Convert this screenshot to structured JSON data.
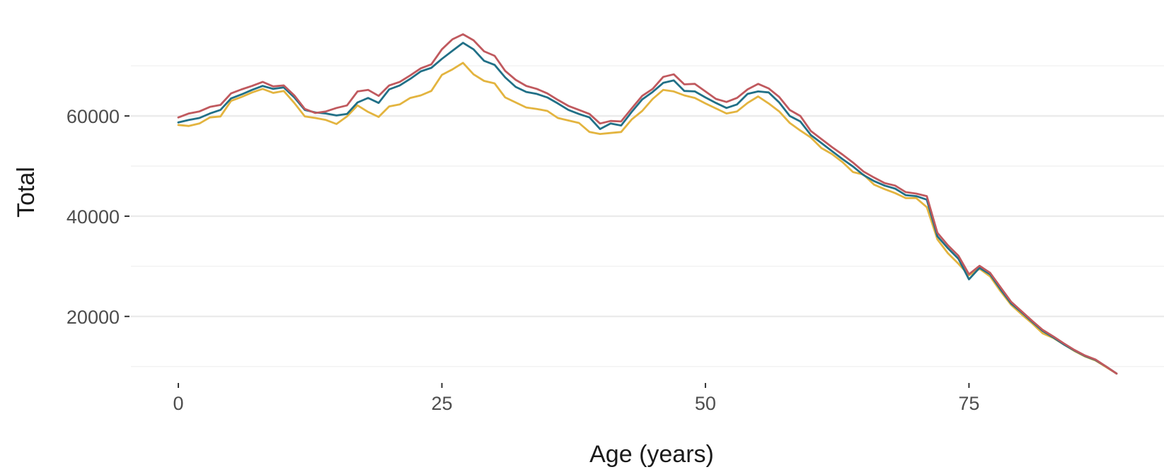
{
  "chart_data": {
    "type": "line",
    "title": "",
    "xlabel": "Age (years)",
    "ylabel": "Total",
    "xlim": [
      -4.5,
      93.5
    ],
    "ylim": [
      7000,
      77500
    ],
    "x_ticks": [
      0,
      25,
      50,
      75
    ],
    "x_tick_labels": [
      "0",
      "25",
      "50",
      "75"
    ],
    "y_ticks": [
      20000,
      40000,
      60000
    ],
    "y_tick_labels": [
      "20000",
      "40000",
      "60000"
    ],
    "y_minor_ticks": [
      10000,
      30000,
      50000,
      70000
    ],
    "grid": true,
    "legend": "none",
    "x": [
      0,
      1,
      2,
      3,
      4,
      5,
      6,
      7,
      8,
      9,
      10,
      11,
      12,
      13,
      14,
      15,
      16,
      17,
      18,
      19,
      20,
      21,
      22,
      23,
      24,
      25,
      26,
      27,
      28,
      29,
      30,
      31,
      32,
      33,
      34,
      35,
      36,
      37,
      38,
      39,
      40,
      41,
      42,
      43,
      44,
      45,
      46,
      47,
      48,
      49,
      50,
      51,
      52,
      53,
      54,
      55,
      56,
      57,
      58,
      59,
      60,
      61,
      62,
      63,
      64,
      65,
      66,
      67,
      68,
      69,
      70,
      71,
      72,
      73,
      74,
      75,
      76,
      77,
      78,
      79,
      80,
      81,
      82,
      83,
      84,
      85,
      86,
      87,
      88,
      89
    ],
    "series": [
      {
        "color": "#c0595e",
        "values": [
          59700,
          60500,
          60900,
          61800,
          62200,
          64500,
          65300,
          66000,
          66800,
          65900,
          66100,
          64100,
          61400,
          60600,
          60900,
          61600,
          62100,
          64900,
          65200,
          64000,
          66100,
          66800,
          68100,
          69500,
          70300,
          73300,
          75300,
          76300,
          75100,
          72900,
          72000,
          69000,
          67200,
          66000,
          65400,
          64500,
          63200,
          62000,
          61200,
          60400,
          58500,
          59000,
          58900,
          61500,
          64000,
          65400,
          67800,
          68300,
          66300,
          66400,
          64900,
          63400,
          62800,
          63600,
          65300,
          66400,
          65500,
          63800,
          61200,
          60000,
          57000,
          55400,
          53800,
          52300,
          50700,
          48900,
          47700,
          46600,
          46100,
          44800,
          44500,
          44000,
          36700,
          34200,
          32100,
          28400,
          30100,
          28700,
          25800,
          22900,
          21000,
          19100,
          17300,
          16000,
          14600,
          13300,
          12200,
          11400,
          10000,
          8600
        ]
      },
      {
        "color": "#217087",
        "values": [
          58700,
          59200,
          59600,
          60500,
          61200,
          63500,
          64300,
          65200,
          66000,
          65400,
          65700,
          63700,
          61200,
          60700,
          60500,
          60100,
          60400,
          62700,
          63600,
          62600,
          65300,
          66100,
          67400,
          68900,
          69600,
          71400,
          73000,
          74600,
          73300,
          71000,
          70200,
          67700,
          65800,
          64800,
          64400,
          63700,
          62500,
          61200,
          60400,
          59700,
          57400,
          58500,
          58100,
          60800,
          63300,
          64800,
          66600,
          67100,
          65000,
          64900,
          63700,
          62600,
          61600,
          62300,
          64400,
          64900,
          64700,
          62700,
          60000,
          58900,
          56200,
          54600,
          53000,
          51400,
          49900,
          48200,
          47000,
          46100,
          45500,
          44200,
          44000,
          43300,
          36000,
          33600,
          31500,
          27400,
          29700,
          28400,
          25400,
          22600,
          20800,
          18900,
          17100,
          15800,
          14400,
          13200,
          12100,
          11300,
          10000,
          8600
        ]
      },
      {
        "color": "#e3b43f",
        "values": [
          58200,
          58000,
          58500,
          59700,
          59900,
          63000,
          63800,
          64700,
          65400,
          64600,
          65000,
          62600,
          59900,
          59600,
          59200,
          58400,
          59900,
          62100,
          60800,
          59800,
          61900,
          62300,
          63600,
          64100,
          65000,
          68200,
          69300,
          70600,
          68300,
          67000,
          66500,
          63700,
          62700,
          61700,
          61400,
          61000,
          59600,
          59100,
          58600,
          56800,
          56400,
          56600,
          56800,
          59300,
          61000,
          63400,
          65200,
          64900,
          64100,
          63600,
          62500,
          61500,
          60500,
          60900,
          62600,
          63900,
          62500,
          60900,
          58600,
          57100,
          55700,
          53600,
          52400,
          50800,
          48800,
          48300,
          46300,
          45400,
          44600,
          43600,
          43600,
          41800,
          35400,
          32600,
          30500,
          28200,
          29500,
          28000,
          25000,
          22300,
          20400,
          18600,
          16600,
          15700,
          14400,
          13100,
          12000,
          11200,
          9900,
          8600
        ]
      }
    ]
  }
}
